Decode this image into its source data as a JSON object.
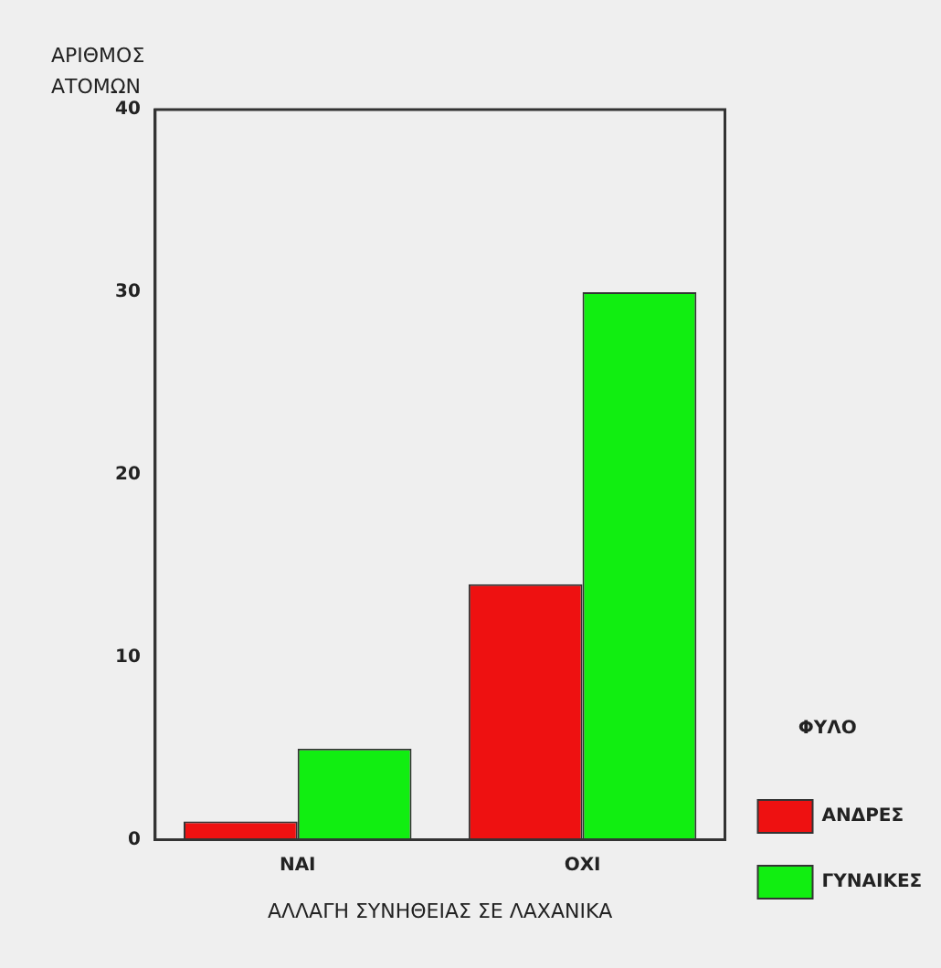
{
  "chart_data": {
    "type": "bar",
    "xlabel": "ΑΛΛΑΓΗ ΣΥΝΗΘΕΙΑΣ ΣΕ ΛΑΧΑΝΙΚΑ",
    "ylabel": "ΑΡΙΘΜΟΣ ΑΤΟΜΩΝ",
    "legend_title": "ΦΥΛΟ",
    "categories": [
      "ΝΑΙ",
      "ΟΧΙ"
    ],
    "series": [
      {
        "name": "ΑΝΔΡΕΣ",
        "color": "#ee1111",
        "values": [
          1,
          14
        ]
      },
      {
        "name": "ΓΥΝΑΙΚΕΣ",
        "color": "#11ee11",
        "values": [
          5,
          30
        ]
      }
    ],
    "ylim": [
      0,
      40
    ],
    "yticks": [
      0,
      10,
      20,
      30,
      40
    ],
    "grid": false,
    "legend": "bottom right"
  }
}
